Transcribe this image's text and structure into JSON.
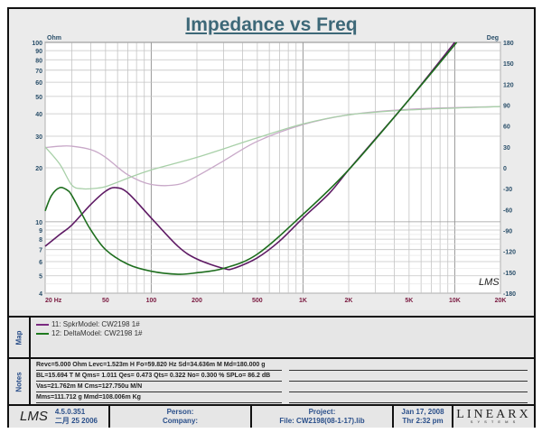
{
  "chart_data": {
    "type": "line",
    "title": "Impedance vs Freq",
    "xlabel": "Hz",
    "ylabel": "Ohm",
    "y2label": "Deg",
    "xscale": "log",
    "xlim": [
      20,
      20000
    ],
    "yscale": "log",
    "ylim": [
      4,
      100
    ],
    "y2lim": [
      -180,
      180
    ],
    "xticks": [
      {
        "v": 20,
        "l": "20  Hz"
      },
      {
        "v": 50,
        "l": "50"
      },
      {
        "v": 100,
        "l": "100"
      },
      {
        "v": 200,
        "l": "200"
      },
      {
        "v": 500,
        "l": "500"
      },
      {
        "v": 1000,
        "l": "1K"
      },
      {
        "v": 2000,
        "l": "2K"
      },
      {
        "v": 5000,
        "l": "5K"
      },
      {
        "v": 10000,
        "l": "10K"
      },
      {
        "v": 20000,
        "l": "20K"
      }
    ],
    "yticks": [
      {
        "v": 100,
        "l": "100"
      },
      {
        "v": 90,
        "l": "90"
      },
      {
        "v": 80,
        "l": "80"
      },
      {
        "v": 70,
        "l": "70"
      },
      {
        "v": 60,
        "l": "60"
      },
      {
        "v": 50,
        "l": "50"
      },
      {
        "v": 40,
        "l": "40"
      },
      {
        "v": 30,
        "l": "30"
      },
      {
        "v": 20,
        "l": "20"
      },
      {
        "v": 10,
        "l": "10"
      },
      {
        "v": 9,
        "l": "9"
      },
      {
        "v": 8,
        "l": "8"
      },
      {
        "v": 7,
        "l": "7"
      },
      {
        "v": 6,
        "l": "6"
      },
      {
        "v": 5,
        "l": "5"
      },
      {
        "v": 4,
        "l": "4"
      }
    ],
    "y2ticks": [
      180,
      150,
      120,
      90,
      60,
      30,
      0,
      -30,
      -60,
      -90,
      -120,
      -150,
      -180
    ],
    "grid": true,
    "series": [
      {
        "name": "11: SpkrModel: CW2198  1# (impedance)",
        "axis": "y",
        "color": "#5e1a64",
        "x": [
          20,
          25,
          30,
          40,
          50,
          58,
          70,
          100,
          150,
          200,
          300,
          350,
          500,
          700,
          1000,
          1500,
          2000,
          3000,
          5000,
          10000
        ],
        "values": [
          7.3,
          8.5,
          9.6,
          12.5,
          14.8,
          15.5,
          14.5,
          10.5,
          7.3,
          6.2,
          5.5,
          5.5,
          6.3,
          7.8,
          10.5,
          14.5,
          19.5,
          29,
          48,
          100
        ]
      },
      {
        "name": "12: DeltaModel: CW2198  1# (impedance)",
        "axis": "y",
        "color": "#1e6e1e",
        "x": [
          20,
          22,
          25,
          28,
          30,
          35,
          40,
          50,
          70,
          100,
          150,
          200,
          300,
          500,
          1000,
          2000,
          5000,
          10300
        ],
        "values": [
          11.5,
          14,
          15.5,
          15,
          14,
          11,
          9,
          7,
          5.8,
          5.3,
          5.1,
          5.2,
          5.5,
          6.6,
          11,
          19.5,
          48,
          100
        ]
      },
      {
        "name": "11: SpkrModel: CW2198  1# (phase)",
        "axis": "y2",
        "color": "#c8a8c8",
        "x": [
          20,
          25,
          30,
          40,
          50,
          70,
          100,
          150,
          200,
          300,
          500,
          1000,
          2000,
          5000,
          20000
        ],
        "values": [
          29,
          31,
          31,
          26,
          15,
          -10,
          -24,
          -24,
          -12,
          10,
          38,
          62,
          76,
          84,
          88
        ]
      },
      {
        "name": "12: DeltaModel: CW2198  1# (phase)",
        "axis": "y2",
        "color": "#a8d0a8",
        "x": [
          20,
          25,
          30,
          35,
          40,
          50,
          70,
          100,
          200,
          500,
          1000,
          2000,
          5000,
          20000
        ],
        "values": [
          30,
          5,
          -25,
          -30,
          -30,
          -27,
          -15,
          -3,
          15,
          43,
          63,
          76,
          83,
          88
        ]
      }
    ]
  },
  "map": {
    "label": "Map",
    "items": [
      {
        "text": "11: SpkrModel: CW2198  1#",
        "color": "#7a2a80"
      },
      {
        "text": "12: DeltaModel: CW2198  1#",
        "color": "#1e7a1e"
      }
    ]
  },
  "notes": {
    "label": "Notes",
    "lines": [
      "Revc=5.000 Ohm  Levc=1.523m H  Fo=59.820 Hz  Sd=34.636m M   Md=180.000 g",
      "BL=15.694 T M  Qms= 1.011  Qes= 0.473  Qts= 0.322  No= 0.300 %  SPLo= 86.2 dB",
      "Vas=21.762m M    Cms=127.750u M/N",
      "Mms=111.712 g  Mmd=108.006m Kg"
    ]
  },
  "footer": {
    "logo": "LMS",
    "version": "4.5.0.351",
    "build_date": "二月 25 2006",
    "person": "Person:",
    "company": "Company:",
    "project": "Project:",
    "file": "File: CW2198(08-1-17).lib",
    "date": "Jan 17, 2008",
    "time": "Thr  2:32 pm",
    "brand": "LINEARX",
    "brand_sub": "S Y S T E M S"
  },
  "watermark": "LMS"
}
